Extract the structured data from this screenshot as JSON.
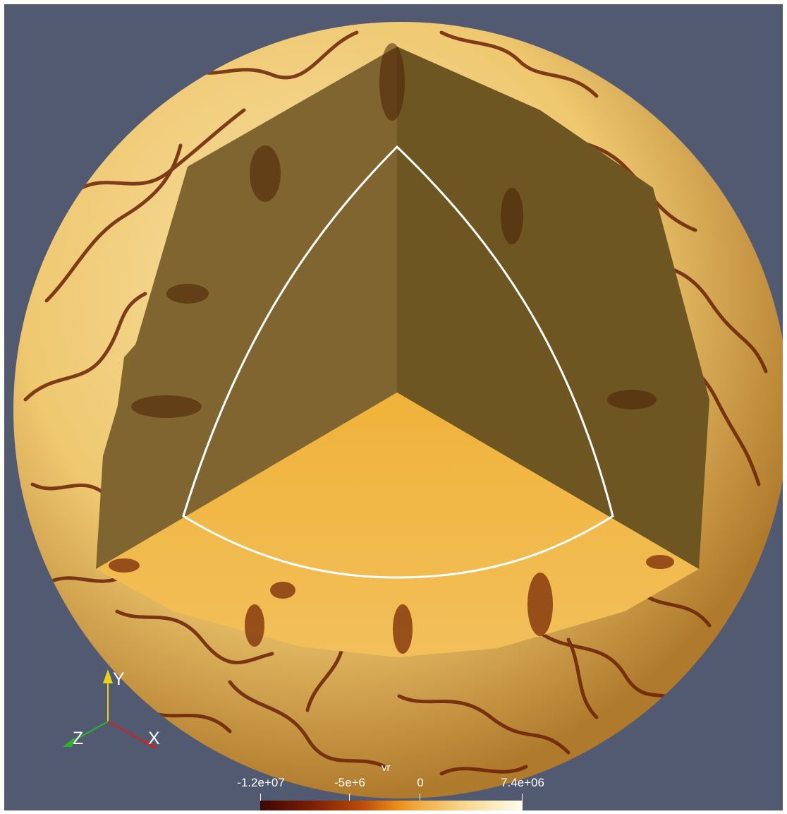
{
  "image": {
    "description_kind": "3D volume rendering of a spherical convection simulation with an octant cut-out",
    "background_color": "#525a72",
    "surface_colors": {
      "light": "#f4d894",
      "mid": "#e3a84c",
      "dark": "#5a1a05"
    }
  },
  "axes": {
    "y_label": "Y",
    "z_label": "Z",
    "x_label": "X",
    "y_color": "#e9d21c",
    "z_color": "#2bb52b",
    "x_color": "#d81e1e"
  },
  "colorbar": {
    "title": "vr",
    "tick_labels": [
      "-1.2e+07",
      "-5e+6",
      "0",
      "7.4e+06"
    ],
    "range": [
      -12000000,
      7400000
    ]
  }
}
